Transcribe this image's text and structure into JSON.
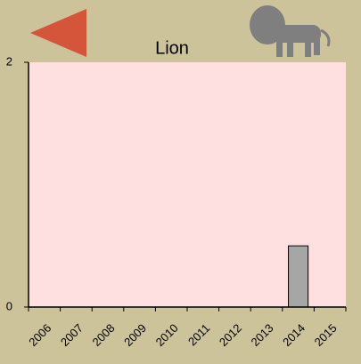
{
  "chart_data": {
    "type": "bar",
    "title": "Lion",
    "categories": [
      "2006",
      "2007",
      "2008",
      "2009",
      "2010",
      "2011",
      "2012",
      "2013",
      "2014",
      "2015"
    ],
    "values": [
      0,
      0,
      0,
      0,
      0,
      0,
      0,
      0,
      0.5,
      0
    ],
    "color": "#a6a6a6",
    "ylim": [
      0,
      2
    ],
    "yticks": [
      0,
      2
    ]
  }
}
